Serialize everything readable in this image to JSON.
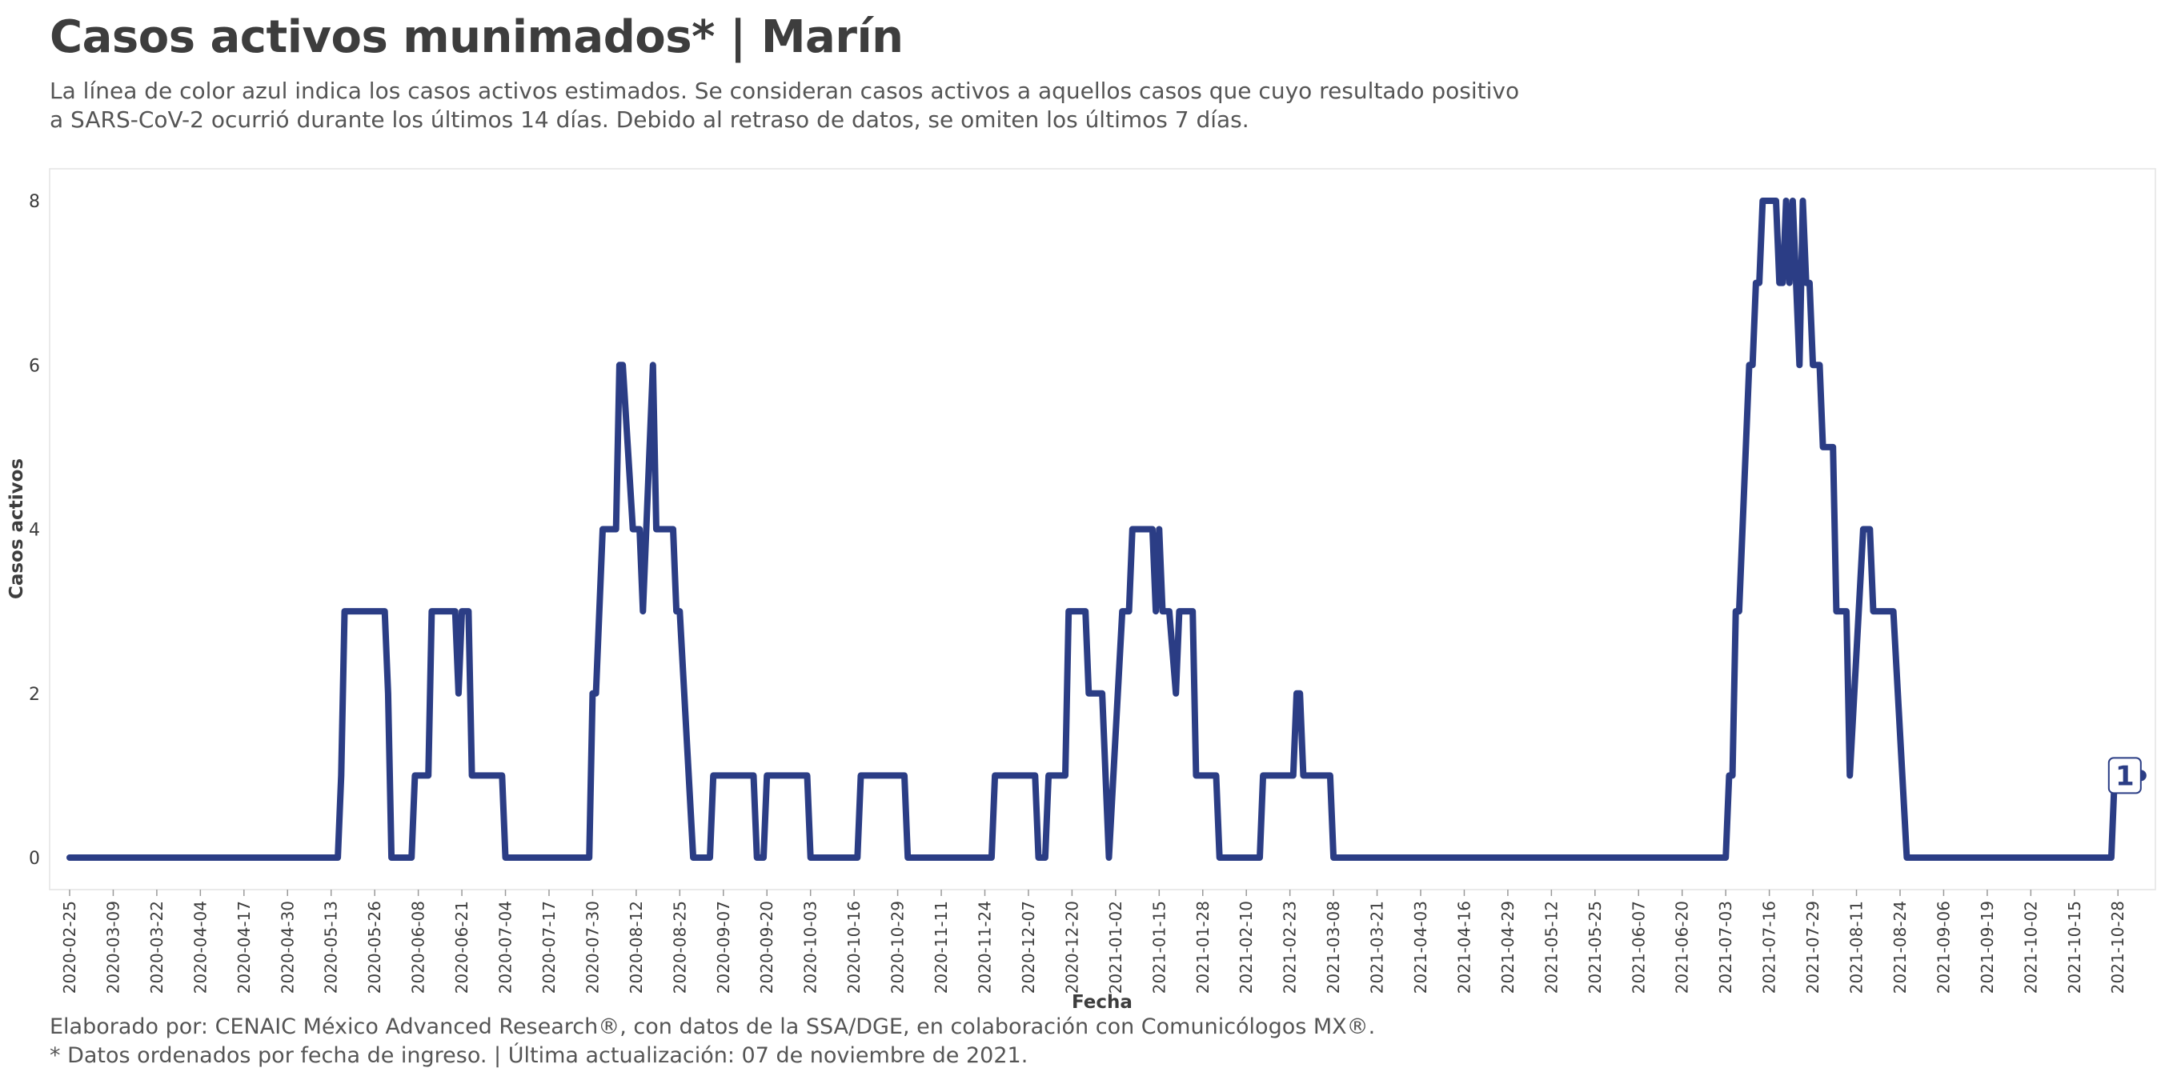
{
  "header": {
    "title": "Casos activos munimados* | Marín",
    "subtitle_line1": "La línea de color azul indica los casos activos estimados. Se consideran casos activos a aquellos casos que cuyo resultado positivo",
    "subtitle_line2": "a SARS-CoV-2 ocurrió durante los últimos 14 días. Debido al retraso de datos, se omiten los últimos 7 días."
  },
  "footer": {
    "line1": "Elaborado por: CENAIC México Advanced Research®, con datos de la SSA/DGE, en colaboración con Comunicólogos MX®.",
    "line2": "* Datos ordenados por fecha de ingreso. | Última actualización: 07 de noviembre de 2021."
  },
  "colors": {
    "line": "#2b3d85",
    "text": "#3d3d3d",
    "grid_border": "#e0e0e0"
  },
  "chart_data": {
    "type": "line",
    "xlabel": "Fecha",
    "ylabel": "Casos activos",
    "xlim": [
      "2020-02-25",
      "2021-11-01"
    ],
    "ylim": [
      0,
      8
    ],
    "yticks": [
      0,
      2,
      4,
      6,
      8
    ],
    "xticks": [
      "2020-02-25",
      "2020-03-09",
      "2020-03-22",
      "2020-04-04",
      "2020-04-17",
      "2020-04-30",
      "2020-05-13",
      "2020-05-26",
      "2020-06-08",
      "2020-06-21",
      "2020-07-04",
      "2020-07-17",
      "2020-07-30",
      "2020-08-12",
      "2020-08-25",
      "2020-09-07",
      "2020-09-20",
      "2020-10-03",
      "2020-10-16",
      "2020-10-29",
      "2020-11-11",
      "2020-11-24",
      "2020-12-07",
      "2020-12-20",
      "2021-01-02",
      "2021-01-15",
      "2021-01-28",
      "2021-02-10",
      "2021-02-23",
      "2021-03-08",
      "2021-03-21",
      "2021-04-03",
      "2021-04-16",
      "2021-04-29",
      "2021-05-12",
      "2021-05-25",
      "2021-06-07",
      "2021-06-20",
      "2021-07-03",
      "2021-07-16",
      "2021-07-29",
      "2021-08-11",
      "2021-08-24",
      "2021-09-06",
      "2021-09-19",
      "2021-10-02",
      "2021-10-15",
      "2021-10-28"
    ],
    "grid": false,
    "legend": "none",
    "end_label": "1",
    "series": [
      {
        "color": "#2b3d85",
        "points": [
          [
            "2020-02-25",
            0
          ],
          [
            "2020-05-15",
            0
          ],
          [
            "2020-05-16",
            1
          ],
          [
            "2020-05-17",
            3
          ],
          [
            "2020-05-29",
            3
          ],
          [
            "2020-05-30",
            2
          ],
          [
            "2020-05-31",
            0
          ],
          [
            "2020-06-06",
            0
          ],
          [
            "2020-06-07",
            1
          ],
          [
            "2020-06-11",
            1
          ],
          [
            "2020-06-12",
            3
          ],
          [
            "2020-06-19",
            3
          ],
          [
            "2020-06-20",
            2
          ],
          [
            "2020-06-21",
            3
          ],
          [
            "2020-06-23",
            3
          ],
          [
            "2020-06-24",
            1
          ],
          [
            "2020-07-03",
            1
          ],
          [
            "2020-07-04",
            0
          ],
          [
            "2020-07-29",
            0
          ],
          [
            "2020-07-30",
            2
          ],
          [
            "2020-07-31",
            2
          ],
          [
            "2020-08-02",
            4
          ],
          [
            "2020-08-06",
            4
          ],
          [
            "2020-08-07",
            6
          ],
          [
            "2020-08-08",
            6
          ],
          [
            "2020-08-11",
            4
          ],
          [
            "2020-08-13",
            4
          ],
          [
            "2020-08-14",
            3
          ],
          [
            "2020-08-17",
            6
          ],
          [
            "2020-08-18",
            4
          ],
          [
            "2020-08-23",
            4
          ],
          [
            "2020-08-24",
            3
          ],
          [
            "2020-08-25",
            3
          ],
          [
            "2020-08-29",
            0
          ],
          [
            "2020-09-03",
            0
          ],
          [
            "2020-09-04",
            1
          ],
          [
            "2020-09-16",
            1
          ],
          [
            "2020-09-17",
            0
          ],
          [
            "2020-09-19",
            0
          ],
          [
            "2020-09-20",
            1
          ],
          [
            "2020-10-02",
            1
          ],
          [
            "2020-10-03",
            0
          ],
          [
            "2020-10-17",
            0
          ],
          [
            "2020-10-18",
            1
          ],
          [
            "2020-10-31",
            1
          ],
          [
            "2020-11-01",
            0
          ],
          [
            "2020-11-26",
            0
          ],
          [
            "2020-11-27",
            1
          ],
          [
            "2020-12-09",
            1
          ],
          [
            "2020-12-10",
            0
          ],
          [
            "2020-12-12",
            0
          ],
          [
            "2020-12-13",
            1
          ],
          [
            "2020-12-18",
            1
          ],
          [
            "2020-12-19",
            3
          ],
          [
            "2020-12-24",
            3
          ],
          [
            "2020-12-25",
            2
          ],
          [
            "2020-12-29",
            2
          ],
          [
            "2020-12-31",
            0
          ],
          [
            "2021-01-04",
            3
          ],
          [
            "2021-01-06",
            3
          ],
          [
            "2021-01-07",
            4
          ],
          [
            "2021-01-13",
            4
          ],
          [
            "2021-01-14",
            3
          ],
          [
            "2021-01-15",
            4
          ],
          [
            "2021-01-16",
            3
          ],
          [
            "2021-01-18",
            3
          ],
          [
            "2021-01-20",
            2
          ],
          [
            "2021-01-21",
            3
          ],
          [
            "2021-01-25",
            3
          ],
          [
            "2021-01-26",
            1
          ],
          [
            "2021-02-01",
            1
          ],
          [
            "2021-02-02",
            0
          ],
          [
            "2021-02-14",
            0
          ],
          [
            "2021-02-15",
            1
          ],
          [
            "2021-02-24",
            1
          ],
          [
            "2021-02-25",
            2
          ],
          [
            "2021-02-26",
            2
          ],
          [
            "2021-02-27",
            1
          ],
          [
            "2021-03-07",
            1
          ],
          [
            "2021-03-08",
            0
          ],
          [
            "2021-07-03",
            0
          ],
          [
            "2021-07-04",
            1
          ],
          [
            "2021-07-05",
            1
          ],
          [
            "2021-07-06",
            3
          ],
          [
            "2021-07-07",
            3
          ],
          [
            "2021-07-10",
            6
          ],
          [
            "2021-07-11",
            6
          ],
          [
            "2021-07-12",
            7
          ],
          [
            "2021-07-13",
            7
          ],
          [
            "2021-07-14",
            8
          ],
          [
            "2021-07-18",
            8
          ],
          [
            "2021-07-19",
            7
          ],
          [
            "2021-07-20",
            7
          ],
          [
            "2021-07-21",
            8
          ],
          [
            "2021-07-22",
            7
          ],
          [
            "2021-07-23",
            8
          ],
          [
            "2021-07-24",
            7
          ],
          [
            "2021-07-25",
            6
          ],
          [
            "2021-07-26",
            8
          ],
          [
            "2021-07-27",
            7
          ],
          [
            "2021-07-28",
            7
          ],
          [
            "2021-07-29",
            6
          ],
          [
            "2021-07-31",
            6
          ],
          [
            "2021-08-01",
            5
          ],
          [
            "2021-08-04",
            5
          ],
          [
            "2021-08-05",
            3
          ],
          [
            "2021-08-08",
            3
          ],
          [
            "2021-08-09",
            1
          ],
          [
            "2021-08-13",
            4
          ],
          [
            "2021-08-15",
            4
          ],
          [
            "2021-08-16",
            3
          ],
          [
            "2021-08-22",
            3
          ],
          [
            "2021-08-26",
            0
          ],
          [
            "2021-10-26",
            0
          ],
          [
            "2021-10-27",
            1
          ],
          [
            "2021-10-31",
            1
          ]
        ]
      }
    ]
  }
}
